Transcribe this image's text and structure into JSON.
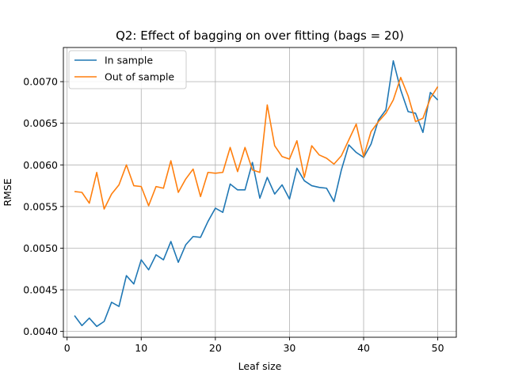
{
  "chart_data": {
    "type": "line",
    "title": "Q2: Effect of bagging on over fitting (bags = 20)",
    "xlabel": "Leaf size",
    "ylabel": "RMSE",
    "xlim": [
      -0.5,
      52.5
    ],
    "ylim": [
      0.00393,
      0.00741
    ],
    "xticks": [
      0,
      10,
      20,
      30,
      40,
      50
    ],
    "xtick_labels": [
      "0",
      "10",
      "20",
      "30",
      "40",
      "50"
    ],
    "yticks": [
      0.004,
      0.0045,
      0.005,
      0.0055,
      0.006,
      0.0065,
      0.007
    ],
    "ytick_labels": [
      "0.0040",
      "0.0045",
      "0.0050",
      "0.0055",
      "0.0060",
      "0.0065",
      "0.0070"
    ],
    "grid": true,
    "legend_position": "upper-left",
    "x": [
      1,
      2,
      3,
      4,
      5,
      6,
      7,
      8,
      9,
      10,
      11,
      12,
      13,
      14,
      15,
      16,
      17,
      18,
      19,
      20,
      21,
      22,
      23,
      24,
      25,
      26,
      27,
      28,
      29,
      30,
      31,
      32,
      33,
      34,
      35,
      36,
      37,
      38,
      39,
      40,
      41,
      42,
      43,
      44,
      45,
      46,
      47,
      48,
      49,
      50
    ],
    "series": [
      {
        "name": "In sample",
        "color": "#1f77b4",
        "values": [
          0.00419,
          0.00407,
          0.00416,
          0.00406,
          0.00412,
          0.00435,
          0.0043,
          0.00467,
          0.00457,
          0.00486,
          0.00474,
          0.00492,
          0.00486,
          0.00508,
          0.00483,
          0.00504,
          0.00514,
          0.00513,
          0.00532,
          0.00548,
          0.00543,
          0.00577,
          0.0057,
          0.0057,
          0.00603,
          0.0056,
          0.00585,
          0.00565,
          0.00576,
          0.00559,
          0.00596,
          0.00581,
          0.00575,
          0.00573,
          0.00572,
          0.00556,
          0.00594,
          0.00624,
          0.00615,
          0.00609,
          0.00625,
          0.00654,
          0.00666,
          0.00725,
          0.0069,
          0.00664,
          0.00662,
          0.00639,
          0.00687,
          0.00678
        ]
      },
      {
        "name": "Out of sample",
        "color": "#ff7f0e",
        "values": [
          0.00568,
          0.00567,
          0.00554,
          0.00591,
          0.00547,
          0.00565,
          0.00576,
          0.006,
          0.00575,
          0.00574,
          0.00551,
          0.00574,
          0.00572,
          0.00605,
          0.00567,
          0.00583,
          0.00595,
          0.00562,
          0.00591,
          0.0059,
          0.00591,
          0.00621,
          0.00592,
          0.00621,
          0.00594,
          0.00591,
          0.00672,
          0.00623,
          0.0061,
          0.00607,
          0.00629,
          0.00585,
          0.00623,
          0.00612,
          0.00608,
          0.00601,
          0.00611,
          0.0063,
          0.00649,
          0.0061,
          0.0064,
          0.00652,
          0.00662,
          0.00678,
          0.00705,
          0.00683,
          0.00652,
          0.00656,
          0.0068,
          0.00694
        ]
      }
    ]
  }
}
